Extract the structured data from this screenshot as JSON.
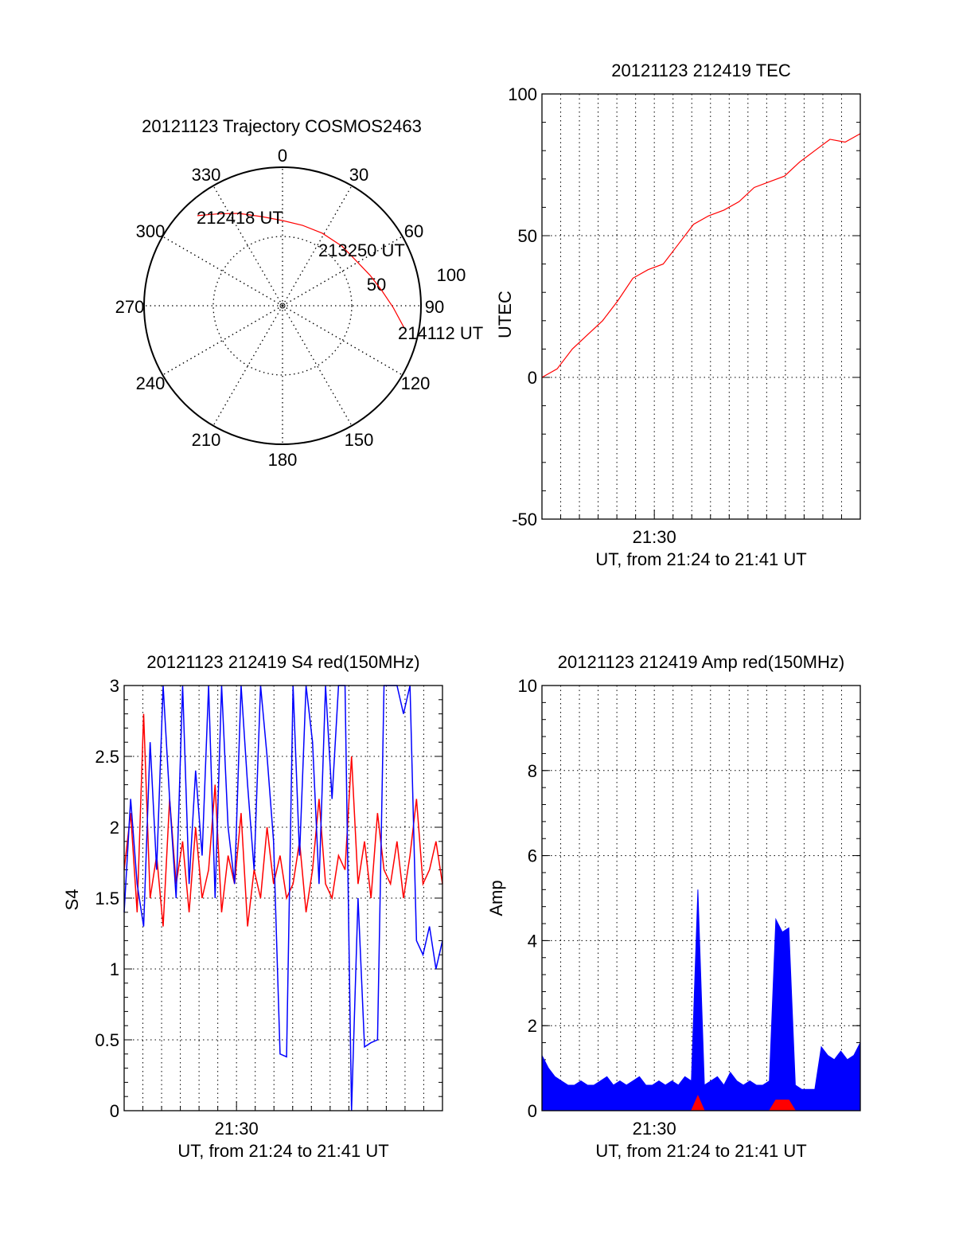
{
  "chart_data": [
    {
      "type": "polar",
      "title": "20121123 Trajectory COSMOS2463",
      "angle_labels": [
        "0",
        "30",
        "60",
        "90",
        "120",
        "150",
        "180",
        "210",
        "240",
        "270",
        "300",
        "330"
      ],
      "radial_labels": [
        "50",
        "100"
      ],
      "rlim": [
        0,
        100
      ],
      "series": [
        {
          "name": "trajectory",
          "color": "#ff0000",
          "points": [
            [
              316.6,
              89.5
            ],
            [
              325,
              81
            ],
            [
              334.6,
              73.8
            ],
            [
              347,
              66
            ],
            [
              0,
              61.5
            ],
            [
              14,
              59.8
            ],
            [
              28.8,
              59.7
            ],
            [
              45,
              60.8
            ],
            [
              60.4,
              62.8
            ],
            [
              71,
              67
            ],
            [
              81.4,
              72.6
            ],
            [
              91,
              80
            ],
            [
              100.4,
              89.4
            ]
          ]
        }
      ],
      "annotations": [
        "212418 UT",
        "213250 UT",
        "214112 UT"
      ]
    },
    {
      "type": "line",
      "title": "20121123 212419 TEC",
      "ylabel": "UTEC",
      "xlabel": "UT, from 21:24 to 21:41 UT",
      "xtick_label": "21:30",
      "xlim_minutes": [
        24,
        41
      ],
      "ylim": [
        -50,
        100
      ],
      "yticks": [
        "100",
        "50",
        "0",
        "-50"
      ],
      "ytick_values": [
        100,
        50,
        0,
        -50
      ],
      "grid": true,
      "series": [
        {
          "name": "TEC",
          "color": "#ff0000",
          "x_fraction_step": 0.05,
          "values": [
            0,
            3,
            10,
            15,
            20,
            27,
            35,
            38,
            40,
            47,
            54,
            57,
            59,
            62,
            67,
            69,
            71,
            76,
            80,
            84,
            83,
            86
          ]
        }
      ]
    },
    {
      "type": "line",
      "title": "20121123 212419 S4 red(150MHz)",
      "ylabel": "S4",
      "xlabel": "UT, from 21:24 to 21:41 UT",
      "xtick_label": "21:30",
      "xlim_minutes": [
        24,
        41
      ],
      "ylim": [
        0,
        3
      ],
      "yticks": [
        "3",
        "2.5",
        "2",
        "1.5",
        "1",
        "0.5",
        "0"
      ],
      "ytick_values": [
        3,
        2.5,
        2,
        1.5,
        1,
        0.5,
        0
      ],
      "grid": true,
      "series": [
        {
          "name": "red",
          "color": "#ff0000",
          "values": [
            1.7,
            2.1,
            1.4,
            2.8,
            1.5,
            1.8,
            1.3,
            2.2,
            1.6,
            1.9,
            1.4,
            2.0,
            1.5,
            1.7,
            2.3,
            1.4,
            1.8,
            1.6,
            2.1,
            1.3,
            1.7,
            1.5,
            2.0,
            1.6,
            1.8,
            1.5,
            1.6,
            1.9,
            1.4,
            1.7,
            2.2,
            1.6,
            1.5,
            1.8,
            1.7,
            2.5,
            1.6,
            1.9,
            1.5,
            2.1,
            1.7,
            1.6,
            1.9,
            1.5,
            1.8,
            2.2,
            1.6,
            1.7,
            1.9,
            1.6
          ]
        },
        {
          "name": "blue",
          "color": "#0000ff",
          "values": [
            1.4,
            2.2,
            1.6,
            1.3,
            2.6,
            1.7,
            3,
            2.2,
            1.5,
            3,
            1.6,
            2.4,
            1.8,
            3,
            1.5,
            3,
            2.0,
            1.6,
            3,
            2.3,
            1.7,
            3,
            2.5,
            1.9,
            0.4,
            0.38,
            3,
            1.8,
            3,
            2.6,
            1.6,
            3,
            2.2,
            3,
            3,
            0.0,
            1.5,
            0.45,
            0.48,
            0.5,
            3,
            3,
            3,
            2.8,
            3,
            1.2,
            1.1,
            1.3,
            1.0,
            1.2
          ]
        }
      ]
    },
    {
      "type": "area",
      "title": "20121123 212419 Amp red(150MHz)",
      "ylabel": "Amp",
      "xlabel": "UT, from 21:24 to 21:41 UT",
      "xtick_label": "21:30",
      "xlim_minutes": [
        24,
        41
      ],
      "ylim": [
        0,
        10
      ],
      "yticks": [
        "10",
        "8",
        "6",
        "4",
        "2",
        "0"
      ],
      "ytick_values": [
        10,
        8,
        6,
        4,
        2,
        0
      ],
      "grid": true,
      "series": [
        {
          "name": "blue",
          "color": "#0000ff",
          "values": [
            1.3,
            1.0,
            0.8,
            0.7,
            0.6,
            0.6,
            0.7,
            0.6,
            0.6,
            0.7,
            0.8,
            0.6,
            0.7,
            0.6,
            0.7,
            0.8,
            0.6,
            0.6,
            0.7,
            0.6,
            0.7,
            0.6,
            0.8,
            0.7,
            5.2,
            0.6,
            0.7,
            0.8,
            0.6,
            0.9,
            0.7,
            0.6,
            0.7,
            0.6,
            0.6,
            0.7,
            4.5,
            4.2,
            4.3,
            0.6,
            0.5,
            0.5,
            0.5,
            1.5,
            1.3,
            1.2,
            1.4,
            1.2,
            1.3,
            1.6
          ]
        },
        {
          "name": "red",
          "color": "#ff0000",
          "values": [
            0,
            0,
            0,
            0,
            0,
            0,
            0,
            0,
            0,
            0,
            0,
            0,
            0,
            0,
            0,
            0,
            0,
            0,
            0,
            0,
            0,
            0,
            0,
            0,
            0.35,
            0,
            0,
            0,
            0,
            0,
            0,
            0,
            0,
            0,
            0,
            0,
            0.25,
            0.25,
            0.25,
            0,
            0,
            0,
            0,
            0,
            0,
            0,
            0,
            0,
            0,
            0
          ]
        }
      ]
    }
  ]
}
